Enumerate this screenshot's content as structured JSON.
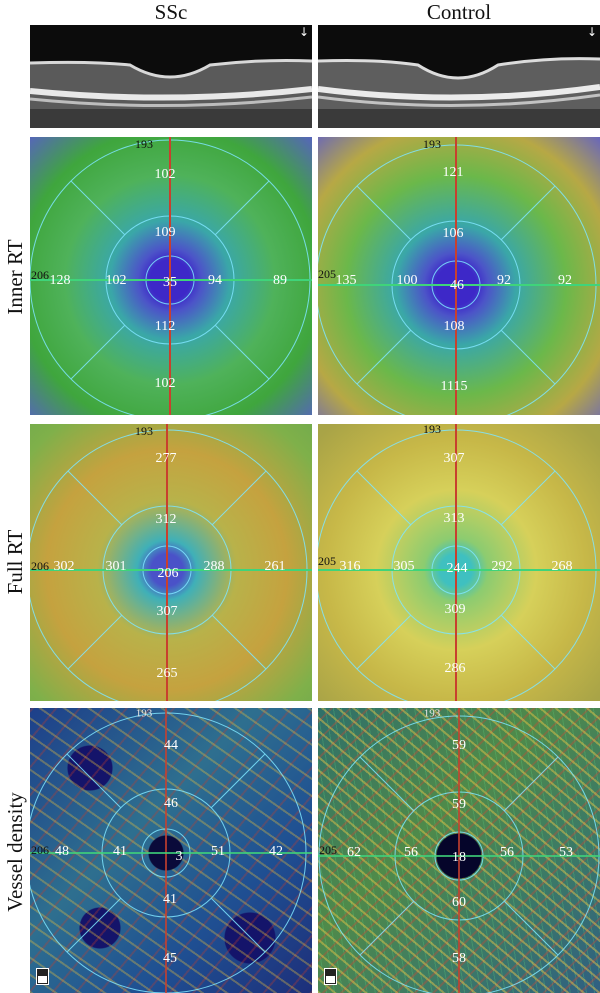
{
  "columns": {
    "left": "SSc",
    "right": "Control"
  },
  "rows": {
    "inner_rt": "Inner RT",
    "full_rt": "Full RT",
    "vessel_density": "Vessel density"
  },
  "panels": {
    "inner_ssc": {
      "top": "193",
      "left": "206",
      "outer_left": "128",
      "inner_left": "102",
      "center": "35",
      "inner_right": "94",
      "outer_right": "89",
      "inner_sup": "109",
      "outer_sup": "102",
      "inner_inf": "112",
      "outer_inf": "102"
    },
    "inner_ctrl": {
      "top": "193",
      "left": "205",
      "outer_left": "135",
      "inner_left": "100",
      "center": "46",
      "inner_right": "92",
      "outer_right": "92",
      "inner_sup": "106",
      "outer_sup": "121",
      "inner_inf": "108",
      "outer_inf": "1115"
    },
    "full_ssc": {
      "top": "193",
      "left": "206",
      "outer_left": "302",
      "inner_left": "301",
      "center": "206",
      "inner_right": "288",
      "outer_right": "261",
      "inner_sup": "312",
      "outer_sup": "277",
      "inner_inf": "307",
      "outer_inf": "265"
    },
    "full_ctrl": {
      "top": "193",
      "left": "205",
      "outer_left": "316",
      "inner_left": "305",
      "center": "244",
      "inner_right": "292",
      "outer_right": "268",
      "inner_sup": "313",
      "outer_sup": "307",
      "inner_inf": "309",
      "outer_inf": "286"
    },
    "vessel_ssc": {
      "top": "193",
      "left": "206",
      "outer_left": "48",
      "inner_left": "41",
      "center": "3",
      "inner_right": "51",
      "outer_right": "42",
      "inner_sup": "46",
      "outer_sup": "44",
      "inner_inf": "41",
      "outer_inf": "45"
    },
    "vessel_ctrl": {
      "top": "193",
      "left": "205",
      "outer_left": "62",
      "inner_left": "56",
      "center": "18",
      "inner_right": "56",
      "outer_right": "53",
      "inner_sup": "59",
      "outer_sup": "59",
      "inner_inf": "60",
      "outer_inf": "58"
    }
  },
  "colors": {
    "grid": "#7fe6ff",
    "vertical_line": "#c8402e",
    "horizontal_line": "#3fd47a"
  }
}
